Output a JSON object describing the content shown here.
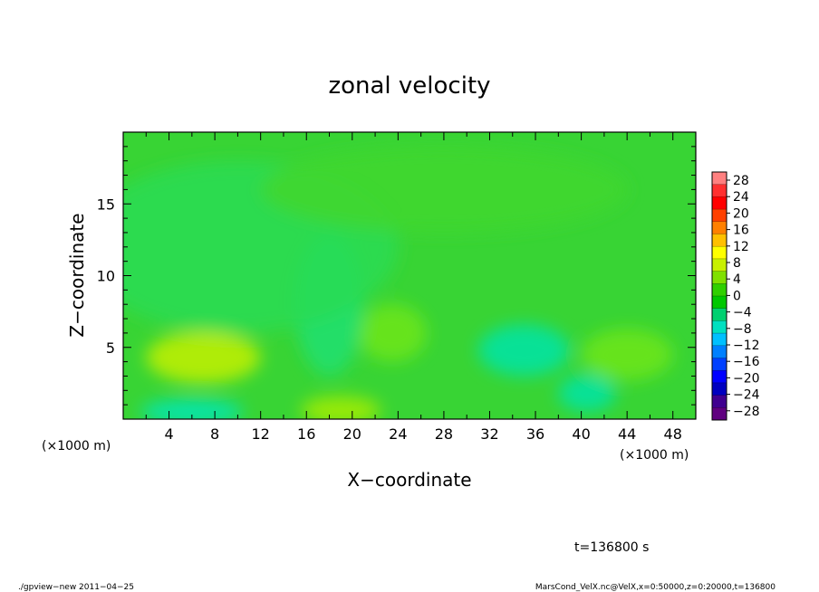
{
  "chart_data": {
    "type": "heatmap",
    "title": "zonal velocity",
    "xlabel": "X−coordinate",
    "ylabel": "Z−coordinate",
    "x_unit_left": "(×1000 m)",
    "x_unit_right": "(×1000 m)",
    "xlim": [
      0,
      50
    ],
    "ylim": [
      0,
      20
    ],
    "x_ticks": [
      4,
      8,
      12,
      16,
      20,
      24,
      28,
      32,
      36,
      40,
      44,
      48
    ],
    "y_ticks": [
      5,
      10,
      15
    ],
    "colorbar": {
      "labels": [
        "28",
        "24",
        "20",
        "16",
        "12",
        "8",
        "4",
        "0",
        "−4",
        "−8",
        "−12",
        "−16",
        "−20",
        "−24",
        "−28"
      ],
      "colors": [
        "#ff8080",
        "#ff3030",
        "#ff0000",
        "#ff4000",
        "#ff8000",
        "#ffc000",
        "#ffff00",
        "#c8f000",
        "#80e000",
        "#30d000",
        "#00c800",
        "#00d070",
        "#00e0c0",
        "#00c0ff",
        "#0080ff",
        "#0040ff",
        "#0000ff",
        "#0000c0",
        "#400090",
        "#600080"
      ]
    },
    "features": [
      {
        "x": 7,
        "z": 4.3,
        "rx": 5,
        "rz": 1.8,
        "value": 6
      },
      {
        "x": 19,
        "z": 0.6,
        "rx": 3.5,
        "rz": 1,
        "value": 5
      },
      {
        "x": 23.5,
        "z": 6,
        "rx": 3,
        "rz": 2,
        "value": 3
      },
      {
        "x": 6,
        "z": 0.5,
        "rx": 4.5,
        "rz": 0.9,
        "value": -7
      },
      {
        "x": 35,
        "z": 4.8,
        "rx": 4,
        "rz": 1.8,
        "value": -6
      },
      {
        "x": 40.5,
        "z": 1.8,
        "rx": 2.5,
        "rz": 1.3,
        "value": -6
      },
      {
        "x": 18,
        "z": 8,
        "rx": 3,
        "rz": 5,
        "value": -3
      },
      {
        "x": 10,
        "z": 12,
        "rx": 14,
        "rz": 6,
        "value": -1.5
      },
      {
        "x": 44,
        "z": 4.5,
        "rx": 4,
        "rz": 1.8,
        "value": 3
      },
      {
        "x": 28,
        "z": 16,
        "rx": 16,
        "rz": 3,
        "value": 0.5
      }
    ],
    "time_label": "t=136800 s"
  },
  "footer": {
    "left": "./gpview−new   2011−04−25",
    "right": "MarsCond_VelX.nc@VelX,x=0:50000,z=0:20000,t=136800"
  }
}
